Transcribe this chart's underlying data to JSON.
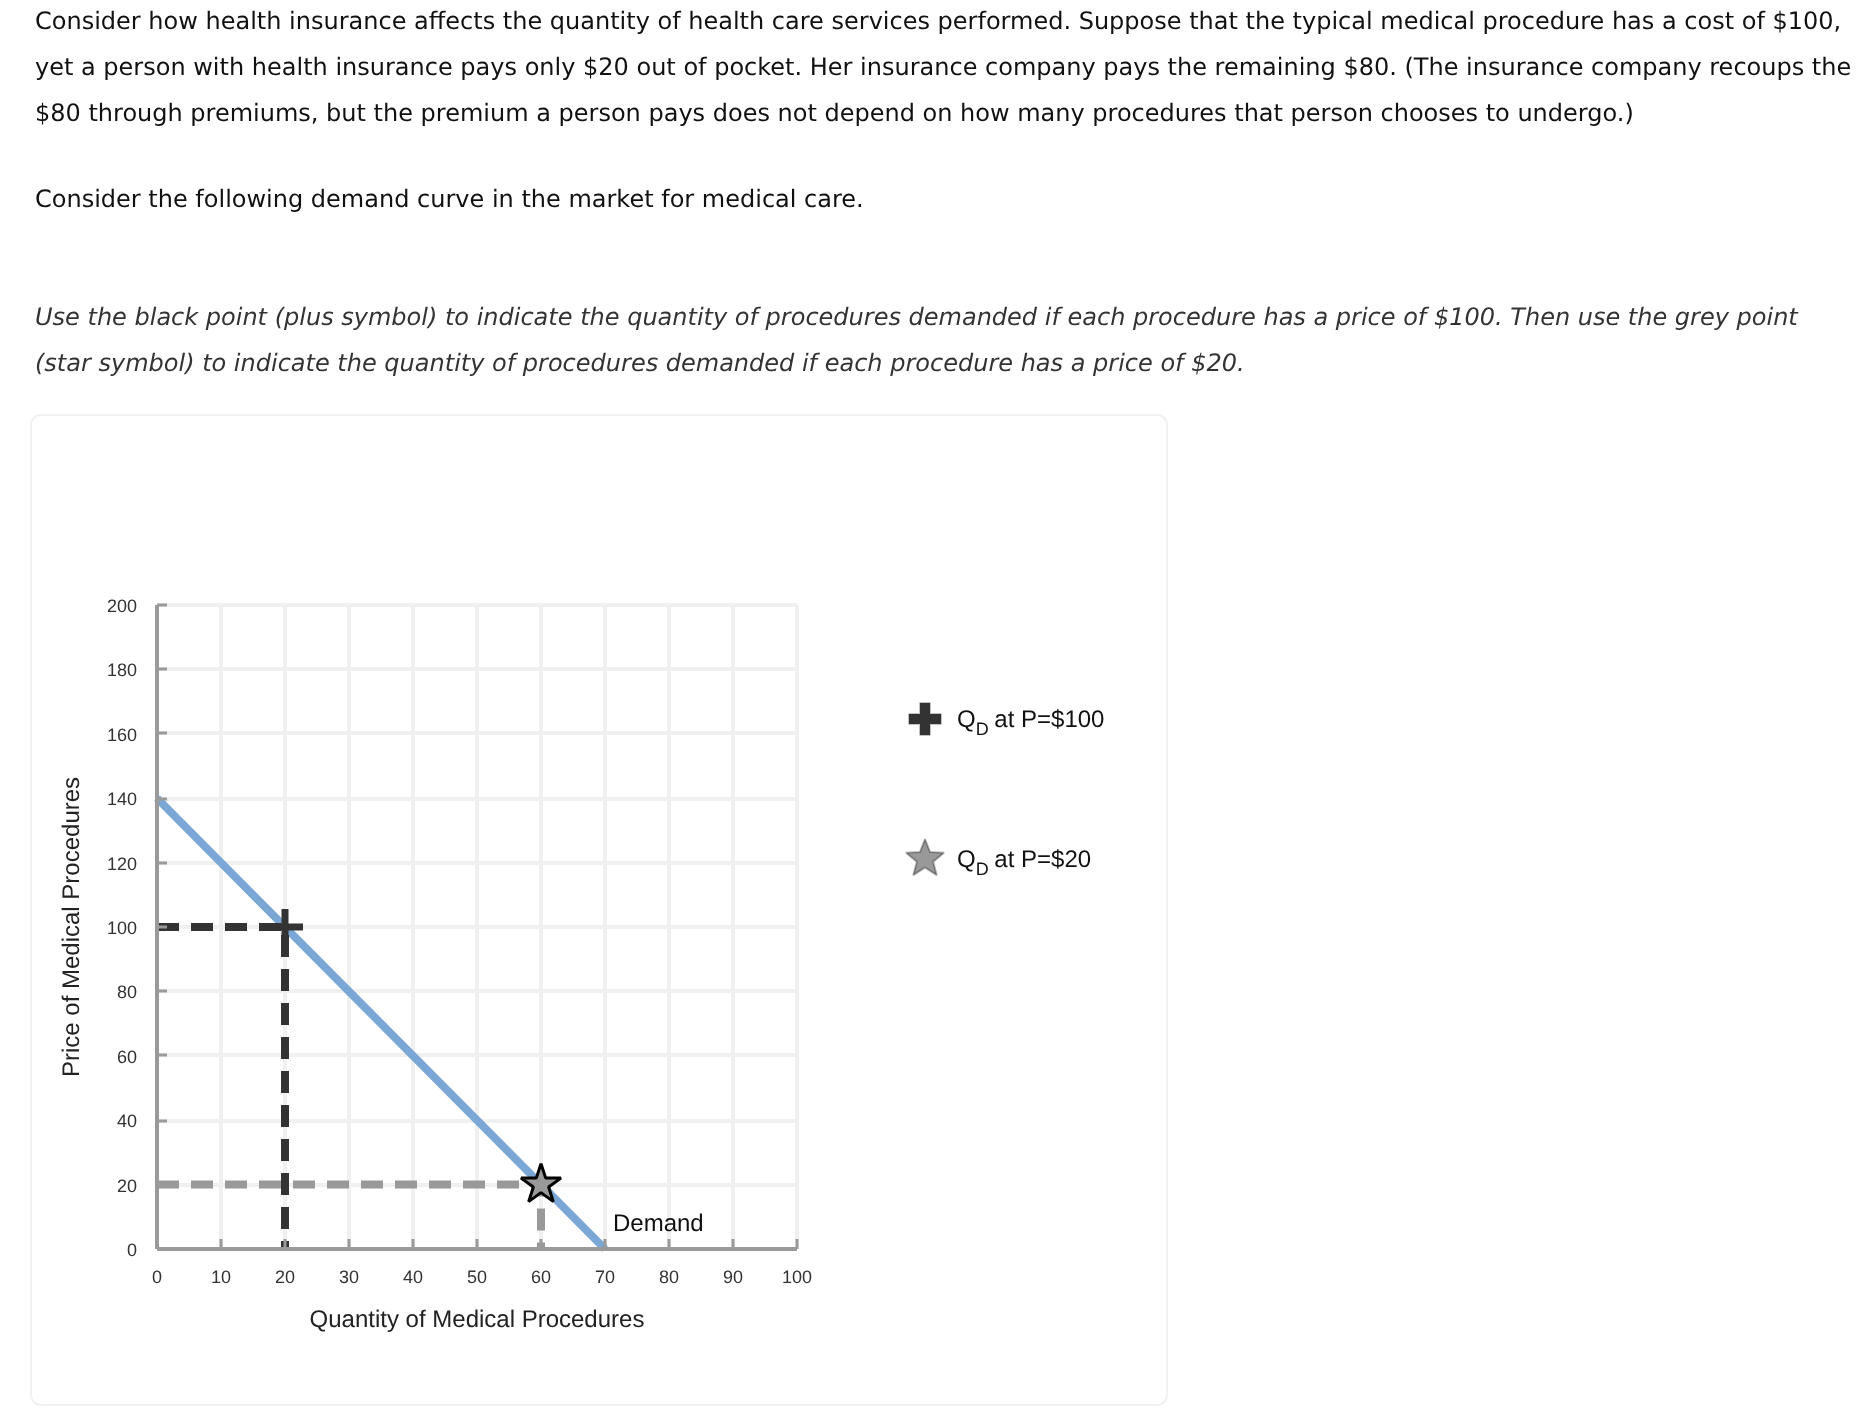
{
  "chart_data": {
    "type": "line",
    "annotations": [
      "Consider how health insurance affects the quantity of health care services performed. Suppose that the typical medical procedure has a cost of $100, yet a person with health insurance pays only $20 out of pocket. Her insurance company pays the remaining $80. (The insurance company recoups the $80 through premiums, but the premium a person pays does not depend on how many procedures that person chooses to undergo.)",
      "Consider the following demand curve in the market for medical care.",
      "Use the black point (plus symbol) to indicate the quantity of procedures demanded if each procedure has a price of $100. Then use the grey point (star symbol) to indicate the quantity of procedures demanded if each procedure has a price of $20."
    ],
    "xlabel": "Quantity of Medical Procedures",
    "ylabel": "Price of Medical Procedures",
    "xlim": [
      0,
      100
    ],
    "ylim": [
      0,
      200
    ],
    "xticks": [
      0,
      10,
      20,
      30,
      40,
      50,
      60,
      70,
      80,
      90,
      100
    ],
    "yticks": [
      0,
      20,
      40,
      60,
      80,
      100,
      120,
      140,
      160,
      180,
      200
    ],
    "grid": true,
    "legend": "right",
    "series": [
      {
        "name": "Demand",
        "color": "#7ba7d6",
        "x": [
          0,
          70
        ],
        "values": [
          140,
          0
        ]
      },
      {
        "color": "#333333",
        "x": [
          0,
          20,
          20
        ],
        "values": [
          100,
          100,
          0
        ],
        "line_style": "dashed"
      },
      {
        "color": "#999999",
        "x": [
          0,
          60,
          60
        ],
        "values": [
          20,
          20,
          0
        ],
        "line_style": "dashed"
      },
      {
        "type": "scatter",
        "name": "Q$_{D}$ at P=$100",
        "color": "#333333",
        "x": [
          20
        ],
        "values": [
          100
        ],
        "marker": "cross"
      },
      {
        "type": "scatter",
        "name": "Q$_{D}$ at P=$20",
        "color": "#999999",
        "x": [
          60
        ],
        "values": [
          20
        ],
        "marker": "star"
      }
    ]
  }
}
